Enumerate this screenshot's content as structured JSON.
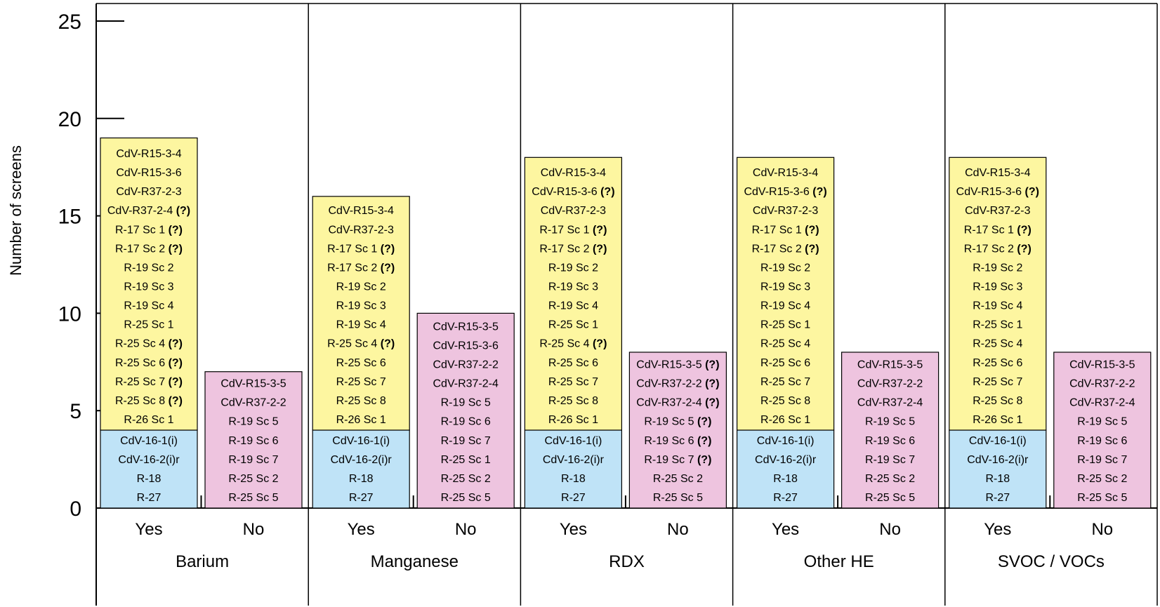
{
  "chart_data": {
    "type": "bar",
    "ylabel": "Number of screens",
    "ylim": [
      0,
      25
    ],
    "yticks": [
      "0",
      "5",
      "10",
      "15",
      "20",
      "25"
    ],
    "groups": [
      {
        "name": "Barium",
        "bars": [
          {
            "label": "Yes",
            "segments": [
              {
                "color": "#bfe3f7",
                "items": [
                  "CdV-16-1(i)",
                  "CdV-16-2(i)r",
                  "R-18",
                  "R-27"
                ]
              },
              {
                "color": "#fdf6a0",
                "items": [
                  "CdV-R15-3-4",
                  "CdV-R15-3-6",
                  "CdV-R37-2-3",
                  "CdV-R37-2-4 (?)",
                  "R-17 Sc 1 (?)",
                  "R-17 Sc 2 (?)",
                  "R-19 Sc 2",
                  "R-19 Sc 3",
                  "R-19 Sc 4",
                  "R-25 Sc 1",
                  "R-25 Sc 4 (?)",
                  "R-25 Sc 6 (?)",
                  "R-25 Sc 7 (?)",
                  "R-25 Sc 8 (?)",
                  "R-26 Sc 1"
                ]
              }
            ]
          },
          {
            "label": "No",
            "segments": [
              {
                "color": "#eec4df",
                "items": [
                  "CdV-R15-3-5",
                  "CdV-R37-2-2",
                  "R-19 Sc 5",
                  "R-19 Sc 6",
                  "R-19 Sc 7",
                  "R-25 Sc 2",
                  "R-25 Sc 5"
                ]
              }
            ]
          }
        ]
      },
      {
        "name": "Manganese",
        "bars": [
          {
            "label": "Yes",
            "segments": [
              {
                "color": "#bfe3f7",
                "items": [
                  "CdV-16-1(i)",
                  "CdV-16-2(i)r",
                  "R-18",
                  "R-27"
                ]
              },
              {
                "color": "#fdf6a0",
                "items": [
                  "CdV-R15-3-4",
                  "CdV-R37-2-3",
                  "R-17 Sc 1 (?)",
                  "R-17 Sc 2 (?)",
                  "R-19 Sc 2",
                  "R-19 Sc 3",
                  "R-19 Sc 4",
                  "R-25 Sc 4 (?)",
                  "R-25 Sc 6",
                  "R-25 Sc 7",
                  "R-25 Sc 8",
                  "R-26 Sc 1"
                ]
              }
            ]
          },
          {
            "label": "No",
            "segments": [
              {
                "color": "#eec4df",
                "items": [
                  "CdV-R15-3-5",
                  "CdV-R15-3-6",
                  "CdV-R37-2-2",
                  "CdV-R37-2-4",
                  "R-19 Sc 5",
                  "R-19 Sc 6",
                  "R-19 Sc 7",
                  "R-25 Sc 1",
                  "R-25 Sc 2",
                  "R-25 Sc 5"
                ]
              }
            ]
          }
        ]
      },
      {
        "name": "RDX",
        "bars": [
          {
            "label": "Yes",
            "segments": [
              {
                "color": "#bfe3f7",
                "items": [
                  "CdV-16-1(i)",
                  "CdV-16-2(i)r",
                  "R-18",
                  "R-27"
                ]
              },
              {
                "color": "#fdf6a0",
                "items": [
                  "CdV-R15-3-4",
                  "CdV-R15-3-6 (?)",
                  "CdV-R37-2-3",
                  "R-17 Sc 1 (?)",
                  "R-17 Sc 2 (?)",
                  "R-19 Sc 2",
                  "R-19 Sc 3",
                  "R-19 Sc 4",
                  "R-25 Sc 1",
                  "R-25 Sc 4 (?)",
                  "R-25 Sc 6",
                  "R-25 Sc 7",
                  "R-25 Sc 8",
                  "R-26 Sc 1"
                ]
              }
            ]
          },
          {
            "label": "No",
            "segments": [
              {
                "color": "#eec4df",
                "items": [
                  "CdV-R15-3-5 (?)",
                  "CdV-R37-2-2 (?)",
                  "CdV-R37-2-4 (?)",
                  "R-19 Sc 5 (?)",
                  "R-19 Sc 6 (?)",
                  "R-19 Sc 7 (?)",
                  "R-25 Sc 2",
                  "R-25 Sc 5"
                ]
              }
            ]
          }
        ]
      },
      {
        "name": "Other HE",
        "bars": [
          {
            "label": "Yes",
            "segments": [
              {
                "color": "#bfe3f7",
                "items": [
                  "CdV-16-1(i)",
                  "CdV-16-2(i)r",
                  "R-18",
                  "R-27"
                ]
              },
              {
                "color": "#fdf6a0",
                "items": [
                  "CdV-R15-3-4",
                  "CdV-R15-3-6 (?)",
                  "CdV-R37-2-3",
                  "R-17 Sc 1 (?)",
                  "R-17 Sc 2 (?)",
                  "R-19 Sc 2",
                  "R-19 Sc 3",
                  "R-19 Sc 4",
                  "R-25 Sc 1",
                  "R-25 Sc 4",
                  "R-25 Sc 6",
                  "R-25 Sc 7",
                  "R-25 Sc 8",
                  "R-26 Sc 1"
                ]
              }
            ]
          },
          {
            "label": "No",
            "segments": [
              {
                "color": "#eec4df",
                "items": [
                  "CdV-R15-3-5",
                  "CdV-R37-2-2",
                  "CdV-R37-2-4",
                  "R-19 Sc 5",
                  "R-19 Sc 6",
                  "R-19 Sc 7",
                  "R-25 Sc 2",
                  "R-25 Sc 5"
                ]
              }
            ]
          }
        ]
      },
      {
        "name": "SVOC / VOCs",
        "bars": [
          {
            "label": "Yes",
            "segments": [
              {
                "color": "#bfe3f7",
                "items": [
                  "CdV-16-1(i)",
                  "CdV-16-2(i)r",
                  "R-18",
                  "R-27"
                ]
              },
              {
                "color": "#fdf6a0",
                "items": [
                  "CdV-R15-3-4",
                  "CdV-R15-3-6 (?)",
                  "CdV-R37-2-3",
                  "R-17 Sc 1 (?)",
                  "R-17 Sc 2 (?)",
                  "R-19 Sc 2",
                  "R-19 Sc 3",
                  "R-19 Sc 4",
                  "R-25 Sc 1",
                  "R-25 Sc 4",
                  "R-25 Sc 6",
                  "R-25 Sc 7",
                  "R-25 Sc 8",
                  "R-26 Sc 1"
                ]
              }
            ]
          },
          {
            "label": "No",
            "segments": [
              {
                "color": "#eec4df",
                "items": [
                  "CdV-R15-3-5",
                  "CdV-R37-2-2",
                  "CdV-R37-2-4",
                  "R-19 Sc 5",
                  "R-19 Sc 6",
                  "R-19 Sc 7",
                  "R-25 Sc 2",
                  "R-25 Sc 5"
                ]
              }
            ]
          }
        ]
      }
    ]
  }
}
